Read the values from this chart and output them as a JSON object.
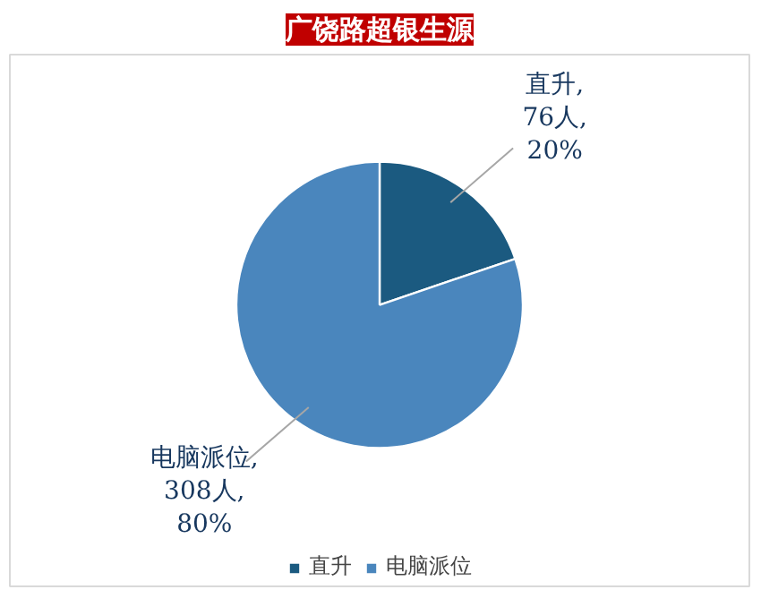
{
  "chart_data": {
    "type": "pie",
    "title": "广饶路超银生源",
    "categories": [
      "直升",
      "电脑派位"
    ],
    "values": [
      76,
      308
    ],
    "colors": [
      "#1b5a80",
      "#4a86bd"
    ],
    "value_labels": [
      "直升,\n76人,\n20%",
      "电脑派位,\n308人,\n80%"
    ],
    "legend": "bottom"
  }
}
